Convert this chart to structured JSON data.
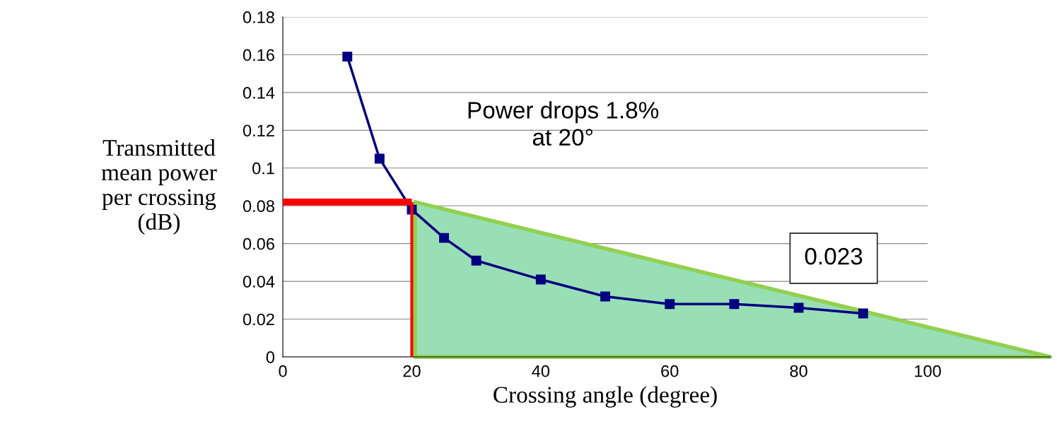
{
  "chart_data": {
    "type": "line",
    "xlabel": "Crossing angle (degree)",
    "ylabel": "Transmitted\nmean power\nper crossing\n(dB)",
    "xlim": [
      0,
      119
    ],
    "ylim": [
      0,
      0.18
    ],
    "xticks": [
      0,
      20,
      40,
      60,
      80,
      100
    ],
    "yticks": [
      0,
      0.02,
      0.04,
      0.06,
      0.08,
      0.1,
      0.12,
      0.14,
      0.16,
      0.18
    ],
    "grid": "y",
    "legend": false,
    "marker": "square",
    "line_style": "solid",
    "series": [
      {
        "type": "area",
        "marker": "none",
        "color": "#98dfb6",
        "x": [
          20.5,
          119
        ],
        "values": [
          0.082,
          0
        ]
      },
      {
        "color": "#000080",
        "x": [
          10,
          15,
          20,
          25,
          30,
          40,
          50,
          60,
          70,
          80,
          90
        ],
        "values": [
          0.159,
          0.105,
          0.078,
          0.063,
          0.051,
          0.041,
          0.032,
          0.028,
          0.028,
          0.026,
          0.023
        ]
      }
    ],
    "ref_lines": [
      {
        "axis": "y",
        "value": 0.082,
        "color": "#ff0000"
      },
      {
        "axis": "x",
        "value": 20,
        "color": "#ff0000"
      }
    ],
    "annotations": [
      "Power drops 1.8%\nat 20°",
      {
        "text": "0.023",
        "x": 90,
        "y": 0.023
      }
    ]
  }
}
